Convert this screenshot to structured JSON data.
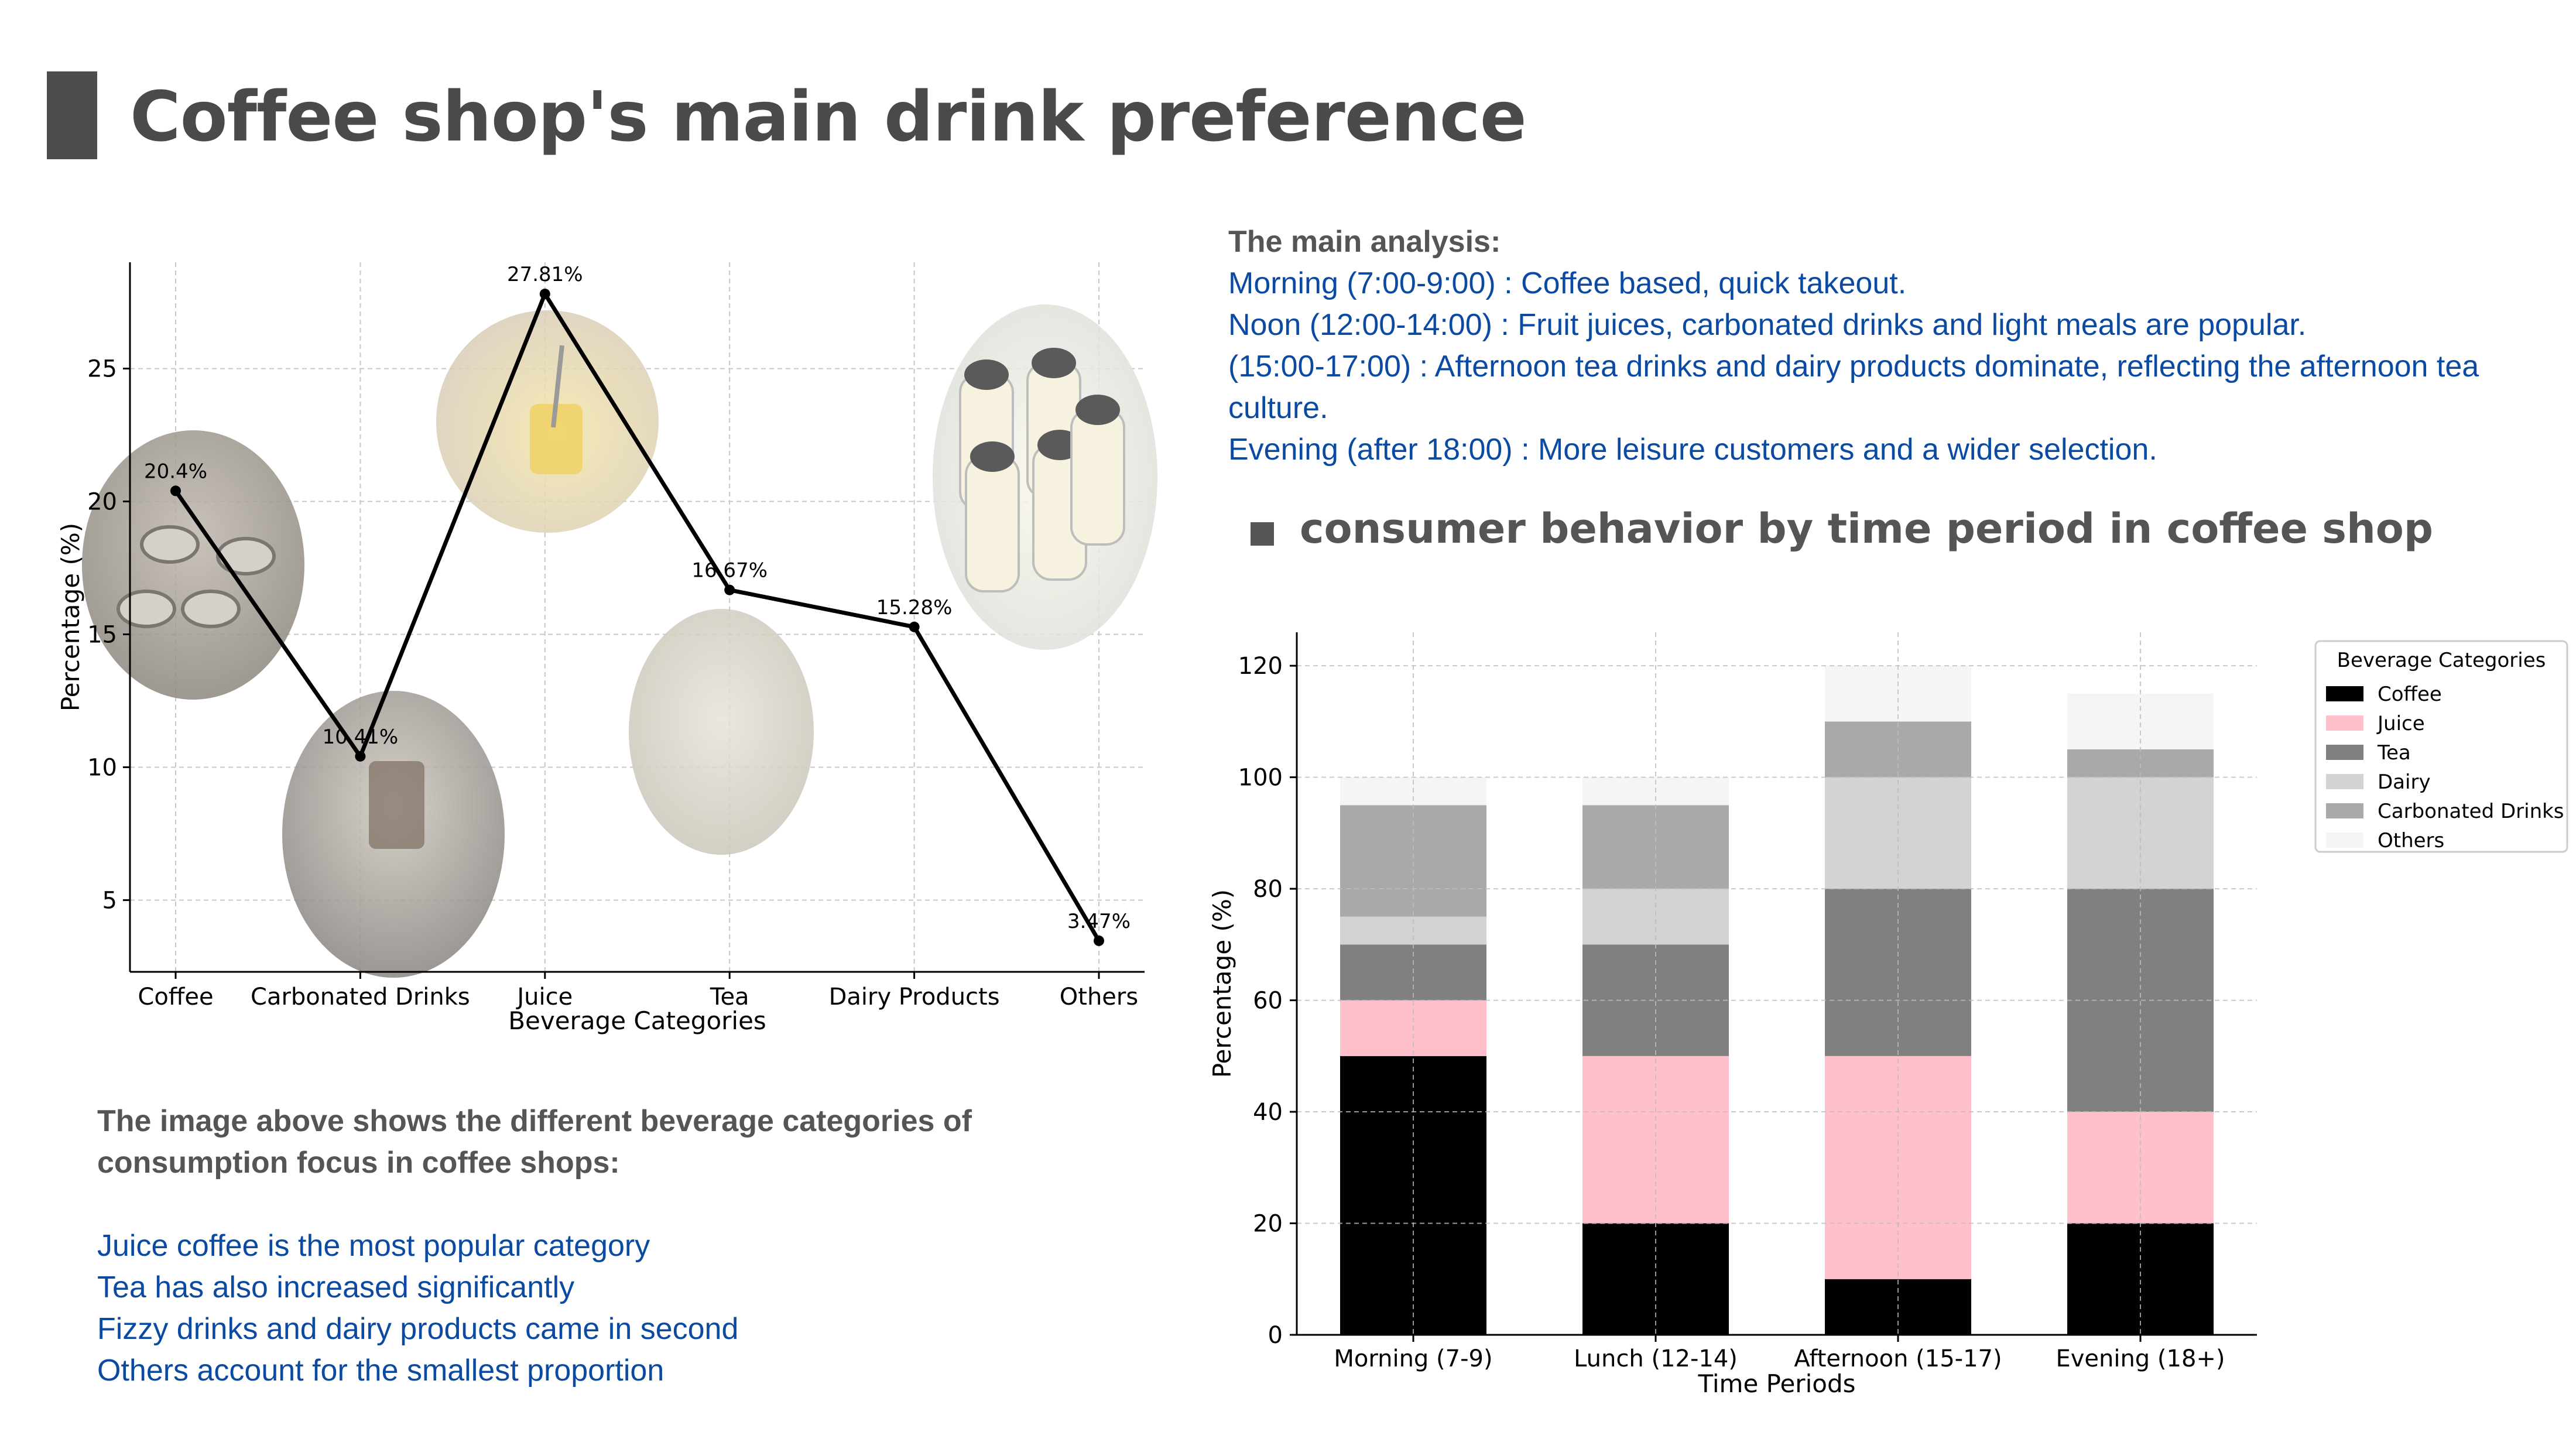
{
  "page": {
    "title": "Coffee shop's main drink preference",
    "section_title": "consumer behavior by time period in coffee shop"
  },
  "analysis": {
    "heading": "The main analysis:",
    "lines": [
      "Morning (7:00-9:00) : Coffee based, quick takeout.",
      "Noon (12:00-14:00) : Fruit juices, carbonated drinks and light meals are popular.",
      "(15:00-17:00) : Afternoon tea drinks and dairy products dominate, reflecting the afternoon tea",
      "culture.",
      "Evening (after 18:00) : More leisure customers and a wider selection."
    ]
  },
  "summary": {
    "heading_line1": "The image above shows the different beverage categories of",
    "heading_line2": "consumption focus in coffee shops:",
    "lines": [
      "Juice coffee is the most popular category",
      "Tea has also increased significantly",
      "Fizzy drinks and dairy products came in second",
      "Others account for the smallest proportion"
    ]
  },
  "colors": {
    "text_blue": "#0b4aa2",
    "text_gray": "#555555",
    "coffee": "#000000",
    "juice": "#ffc0cb",
    "tea": "#808080",
    "dairy": "#d3d3d3",
    "carbonated": "#a9a9a9",
    "others": "#f5f5f5"
  },
  "chart_data": [
    {
      "type": "line",
      "xlabel": "Beverage Categories",
      "ylabel": "Percentage (%)",
      "categories": [
        "Coffee",
        "Carbonated Drinks",
        "Juice",
        "Tea",
        "Dairy Products",
        "Others"
      ],
      "values": [
        20.4,
        10.41,
        27.81,
        16.67,
        15.28,
        3.47
      ],
      "data_labels": [
        "20.4%",
        "10.41%",
        "27.81%",
        "16.67%",
        "15.28%",
        "3.47%"
      ],
      "ylim": [
        2.3,
        29
      ],
      "yticks": [
        "5",
        "10",
        "15",
        "20",
        "25"
      ],
      "grid": true,
      "photos": [
        "coffee-photo",
        "iced-coffee-photo",
        "juice-photo",
        "tea-photo",
        "milk-bottles-photo"
      ]
    },
    {
      "type": "bar",
      "stacked": true,
      "xlabel": "Time Periods",
      "ylabel": "Percentage (%)",
      "categories": [
        "Morning (7-9)",
        "Lunch (12-14)",
        "Afternoon (15-17)",
        "Evening (18+)"
      ],
      "series": [
        {
          "name": "Coffee",
          "values": [
            50,
            20,
            10,
            20
          ]
        },
        {
          "name": "Juice",
          "values": [
            10,
            30,
            40,
            20
          ]
        },
        {
          "name": "Tea",
          "values": [
            10,
            20,
            30,
            40
          ]
        },
        {
          "name": "Dairy",
          "values": [
            5,
            10,
            20,
            20
          ]
        },
        {
          "name": "Carbonated Drinks",
          "values": [
            20,
            15,
            10,
            5
          ]
        },
        {
          "name": "Others",
          "values": [
            5,
            5,
            10,
            10
          ]
        }
      ],
      "ylim": [
        0,
        126
      ],
      "yticks": [
        "0",
        "20",
        "40",
        "60",
        "80",
        "100",
        "120"
      ],
      "legend_title": "Beverage Categories",
      "legend_position": "right",
      "grid": true
    }
  ]
}
